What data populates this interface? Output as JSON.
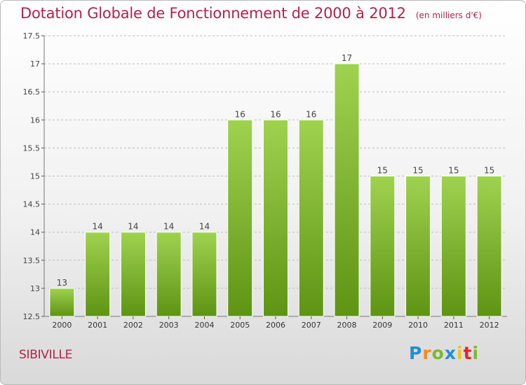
{
  "header": {
    "title": "Dotation Globale de Fonctionnement de 2000 à 2012",
    "unit": "(en milliers d'€)"
  },
  "footer": {
    "commune": "SIBIVILLE",
    "logo": {
      "text": "Proxiti",
      "letters": [
        {
          "ch": "P",
          "color": "#1f8fd6"
        },
        {
          "ch": "r",
          "color": "#f28c1c"
        },
        {
          "ch": "o",
          "color": "#7cb82f"
        },
        {
          "ch": "x",
          "color": "#1f8fd6"
        },
        {
          "ch": "i",
          "color": "#f2c21c"
        },
        {
          "ch": "t",
          "color": "#e0262b"
        },
        {
          "ch": "i",
          "color": "#7cb82f"
        }
      ]
    }
  },
  "colors": {
    "bar_top": "#9fd24f",
    "bar_bottom": "#5e9413",
    "title": "#b0224a",
    "grid": "#bdbdbd"
  },
  "chart_data": {
    "type": "bar",
    "categories": [
      "2000",
      "2001",
      "2002",
      "2003",
      "2004",
      "2005",
      "2006",
      "2007",
      "2008",
      "2009",
      "2010",
      "2011",
      "2012"
    ],
    "values": [
      13,
      14,
      14,
      14,
      14,
      16,
      16,
      16,
      17,
      15,
      15,
      15,
      15
    ],
    "labels": [
      "13",
      "14",
      "14",
      "14",
      "14",
      "16",
      "16",
      "16",
      "17",
      "15",
      "15",
      "15",
      "15"
    ],
    "ylim": [
      12.5,
      17.5
    ],
    "yticks": [
      12.5,
      13,
      13.5,
      14,
      14.5,
      15,
      15.5,
      16,
      16.5,
      17,
      17.5
    ],
    "ytick_labels": [
      "12.5",
      "13",
      "13.5",
      "14",
      "14.5",
      "15",
      "15.5",
      "16",
      "16.5",
      "17",
      "17.5"
    ],
    "grid": true,
    "title": "Dotation Globale de Fonctionnement de 2000 à 2012",
    "unit": "(en milliers d'€)"
  }
}
